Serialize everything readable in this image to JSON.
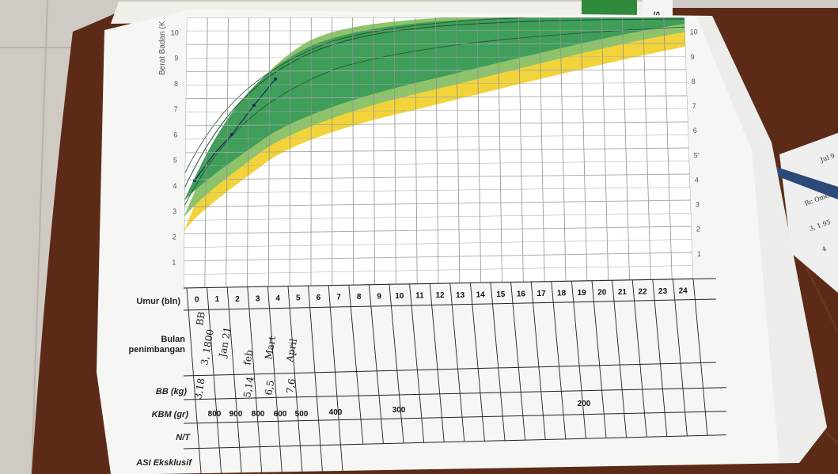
{
  "chart": {
    "y_axis_label": "Berat Badan (K",
    "y_ticks_left": [
      "1",
      "2",
      "3",
      "4",
      "5",
      "6",
      "7",
      "8",
      "9",
      "10"
    ],
    "y_ticks_right": [
      "1",
      "2",
      "3",
      "4",
      "5'",
      "6",
      "7",
      "8",
      "9",
      "10"
    ]
  },
  "table": {
    "row_labels": {
      "umur": "Umur (bln)",
      "bulan_line1": "Bulan",
      "bulan_line2": "penimbangan",
      "bb": "BB (kg)",
      "kbm": "KBM (gr)",
      "nt": "N/T",
      "asi": "ASI Eksklusif"
    },
    "months": [
      "0",
      "1",
      "2",
      "3",
      "4",
      "5",
      "6",
      "7",
      "8",
      "9",
      "10",
      "11",
      "12",
      "13",
      "14",
      "15",
      "16",
      "17",
      "18",
      "19",
      "20",
      "21",
      "22",
      "23",
      "24"
    ],
    "kbm_values": [
      "800",
      "900",
      "800",
      "600",
      "500",
      "400",
      "300",
      "200"
    ],
    "handwritten": {
      "bulan_0a": "3, 1800",
      "bulan_0b": "BB",
      "bulan_1": "Jan 21",
      "bulan_2": "feb",
      "bulan_3": "Mart",
      "bulan_4": "April",
      "bb_0": "3,18",
      "bb_2": "5,14",
      "bb_3": "6,5",
      "bb_4": "7,6"
    }
  },
  "background": {
    "booklet_tab": "SI",
    "side_note_1": "Jul 9",
    "side_note_2": "Rc Omes",
    "side_note_3": "3, 1.95",
    "side_note_4": "4"
  },
  "colors": {
    "wood": "#5a2a16",
    "paper": "#f4f4f2",
    "band_green_dark": "#3f9e5a",
    "band_green_light": "#8dc46a",
    "band_yellow": "#f2d43a",
    "grid": "#9a9a9a"
  }
}
